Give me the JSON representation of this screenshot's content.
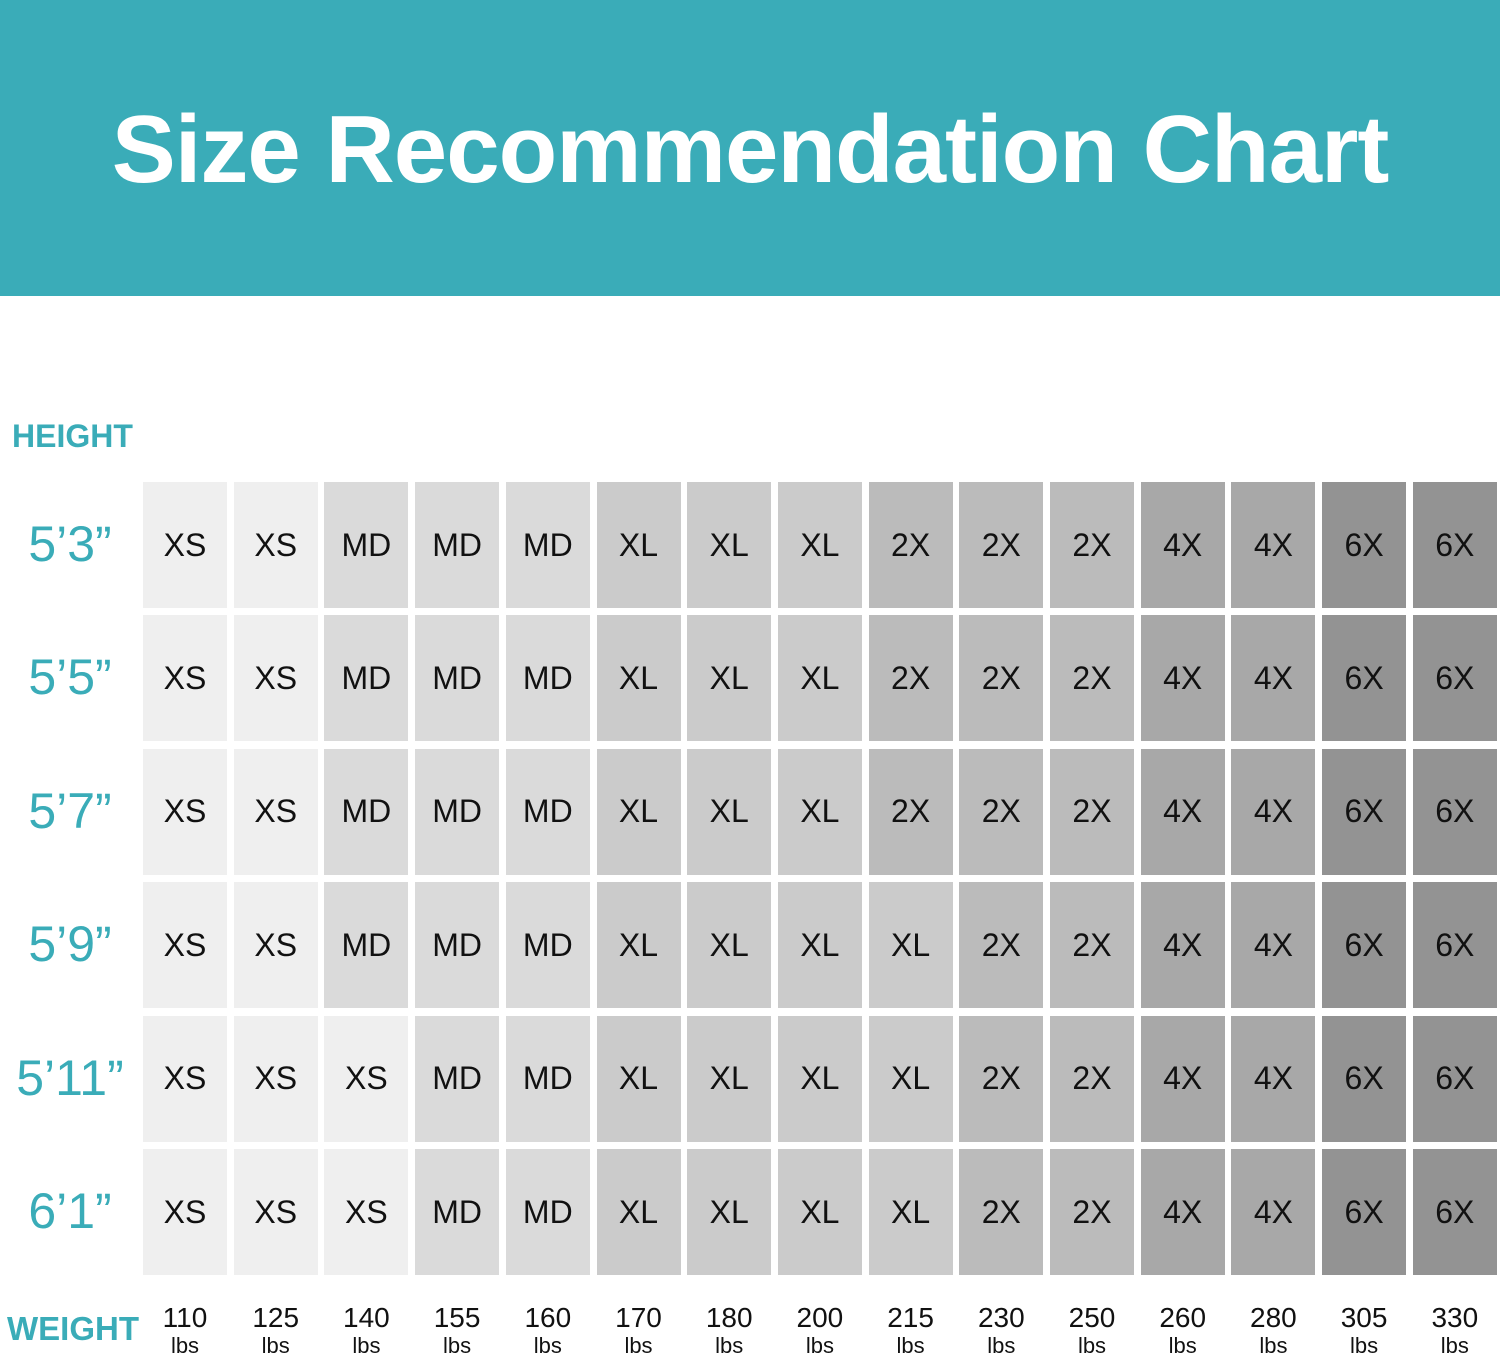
{
  "chart_data": {
    "type": "table",
    "title": "Size Recommendation Chart",
    "ylabel": "HEIGHT",
    "xlabel": "WEIGHT",
    "heights": [
      "5’3”",
      "5’5”",
      "5’7”",
      "5’9”",
      "5’11”",
      "6’1”"
    ],
    "weights": [
      "110",
      "125",
      "140",
      "155",
      "160",
      "170",
      "180",
      "200",
      "215",
      "230",
      "250",
      "260",
      "280",
      "305",
      "330"
    ],
    "weight_unit": "lbs",
    "sizes": [
      [
        "XS",
        "XS",
        "MD",
        "MD",
        "MD",
        "XL",
        "XL",
        "XL",
        "2X",
        "2X",
        "2X",
        "4X",
        "4X",
        "6X",
        "6X"
      ],
      [
        "XS",
        "XS",
        "MD",
        "MD",
        "MD",
        "XL",
        "XL",
        "XL",
        "2X",
        "2X",
        "2X",
        "4X",
        "4X",
        "6X",
        "6X"
      ],
      [
        "XS",
        "XS",
        "MD",
        "MD",
        "MD",
        "XL",
        "XL",
        "XL",
        "2X",
        "2X",
        "2X",
        "4X",
        "4X",
        "6X",
        "6X"
      ],
      [
        "XS",
        "XS",
        "MD",
        "MD",
        "MD",
        "XL",
        "XL",
        "XL",
        "XL",
        "2X",
        "2X",
        "4X",
        "4X",
        "6X",
        "6X"
      ],
      [
        "XS",
        "XS",
        "XS",
        "MD",
        "MD",
        "XL",
        "XL",
        "XL",
        "XL",
        "2X",
        "2X",
        "4X",
        "4X",
        "6X",
        "6X"
      ],
      [
        "XS",
        "XS",
        "XS",
        "MD",
        "MD",
        "XL",
        "XL",
        "XL",
        "XL",
        "2X",
        "2X",
        "4X",
        "4X",
        "6X",
        "6X"
      ]
    ],
    "size_colors": {
      "XS": "#efefef",
      "MD": "#dadada",
      "XL": "#cbcbcb",
      "2X": "#bbbbbb",
      "4X": "#a8a8a8",
      "6X": "#939393"
    },
    "accent": "#3aacb8"
  }
}
